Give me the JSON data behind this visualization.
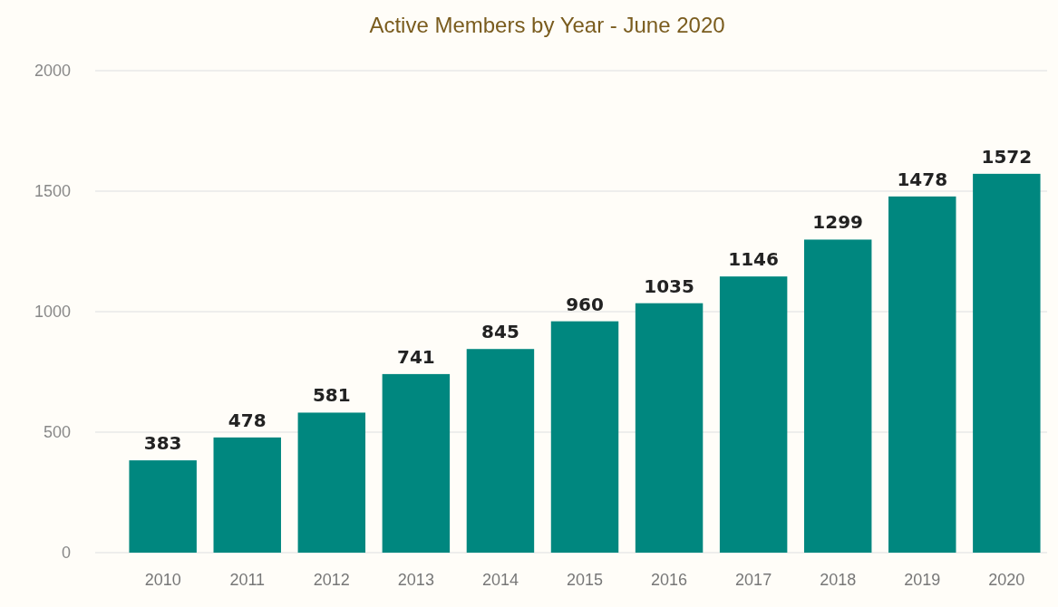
{
  "chart_data": {
    "type": "bar",
    "title": "Active Members by Year - June 2020",
    "categories": [
      "2010",
      "2011",
      "2012",
      "2013",
      "2014",
      "2015",
      "2016",
      "2017",
      "2018",
      "2019",
      "2020"
    ],
    "values": [
      383,
      478,
      581,
      741,
      845,
      960,
      1035,
      1146,
      1299,
      1478,
      1572
    ],
    "color": "#00877f",
    "ylim": [
      0,
      2000
    ],
    "yticks": [
      0,
      500,
      1000,
      1500,
      2000
    ],
    "grid": "y",
    "data_labels": true
  }
}
